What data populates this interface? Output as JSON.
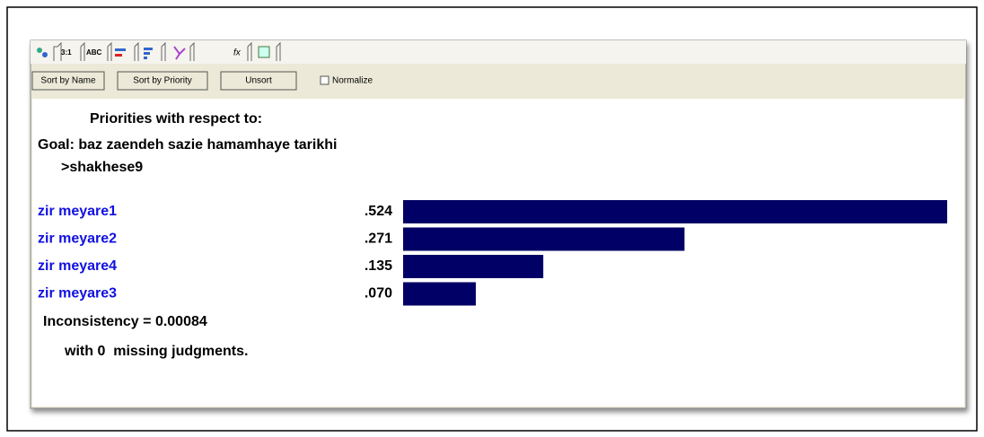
{
  "toolbar": {
    "tabs": [
      "3:1",
      "ABC"
    ]
  },
  "buttons": [
    "Sort by Name",
    "Sort by Priority",
    "Unsort"
  ],
  "checkbox": "Normalize",
  "header": {
    "title": "Priorities with respect to:",
    "goal": "Goal: baz zaendeh sazie hamamhaye tarikhi",
    "node": ">shakhese9"
  },
  "chart_data": {
    "type": "bar",
    "orientation": "horizontal",
    "categories": [
      "zir meyare1",
      "zir meyare2",
      "zir meyare4",
      "zir meyare3"
    ],
    "values": [
      0.524,
      0.271,
      0.135,
      0.07
    ],
    "value_labels": [
      ".524",
      ".271",
      ".135",
      ".070"
    ],
    "color": "#000066",
    "label_color": "#1010e0"
  },
  "footer": {
    "inconsistency": "Inconsistency = 0.00084",
    "missing": "with 0  missing judgments."
  }
}
